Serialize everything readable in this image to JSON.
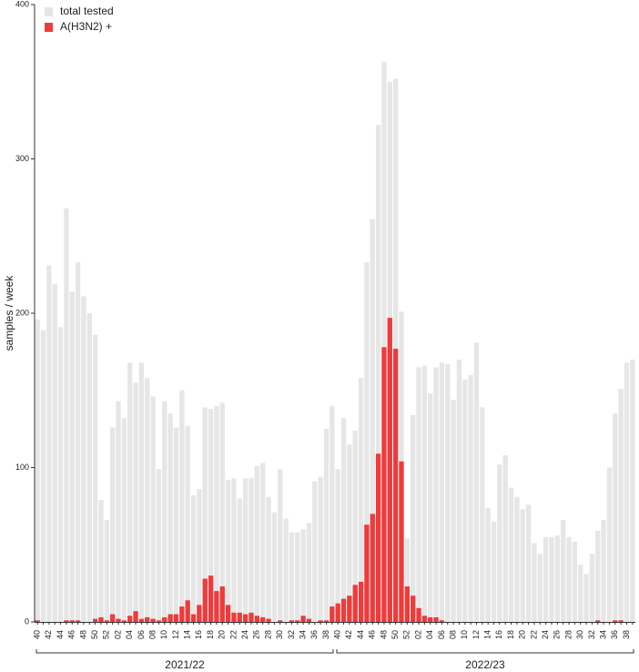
{
  "chart_data": {
    "type": "bar",
    "overlay": true,
    "y_label": "samples / week",
    "season_labels": [
      "2021/22",
      "2022/23"
    ],
    "categories": [
      "40",
      null,
      "42",
      null,
      "44",
      null,
      "46",
      null,
      "48",
      null,
      "50",
      null,
      "52",
      null,
      "02",
      null,
      "04",
      null,
      "06",
      null,
      "08",
      null,
      "10",
      null,
      "12",
      null,
      "14",
      null,
      "16",
      null,
      "18",
      null,
      "20",
      null,
      "22",
      null,
      "24",
      null,
      "26",
      null,
      "28",
      null,
      "30",
      null,
      "32",
      null,
      "34",
      null,
      "36",
      null,
      "38",
      null,
      "40",
      null,
      "42",
      null,
      "44",
      null,
      "46",
      null,
      "48",
      null,
      "50",
      null,
      "52",
      null,
      "02",
      null,
      "04",
      null,
      "06",
      null,
      "08",
      null,
      "10",
      null,
      "12",
      null,
      "14",
      null,
      "16",
      null,
      "18",
      null,
      "20",
      null,
      "22",
      null,
      "24",
      null,
      "26",
      null,
      "28",
      null,
      "30",
      null,
      "32",
      null,
      "34",
      null,
      "36",
      null,
      "38",
      null
    ],
    "series": [
      {
        "name": "total tested",
        "color": "#e6e6e6",
        "values": [
          196,
          189,
          231,
          219,
          191,
          268,
          214,
          233,
          211,
          200,
          186,
          79,
          66,
          126,
          143,
          132,
          168,
          155,
          168,
          158,
          146,
          99,
          143,
          135,
          126,
          150,
          127,
          82,
          86,
          139,
          138,
          140,
          142,
          92,
          93,
          80,
          93,
          93,
          101,
          103,
          81,
          71,
          99,
          67,
          58,
          58,
          60,
          64,
          91,
          94,
          125,
          140,
          99,
          132,
          115,
          124,
          158,
          233,
          261,
          322,
          363,
          350,
          352,
          201,
          54,
          134,
          165,
          166,
          148,
          165,
          168,
          167,
          144,
          170,
          157,
          160,
          181,
          139,
          74,
          65,
          102,
          108,
          87,
          81,
          73,
          76,
          51,
          44,
          55,
          55,
          56,
          66,
          55,
          52,
          37,
          31,
          44,
          59,
          66,
          100,
          135,
          151,
          168,
          170
        ]
      },
      {
        "name": "A(H3N2) +",
        "color": "#ee3b3b",
        "values": [
          1,
          0,
          0,
          0,
          0,
          1,
          1,
          1,
          0,
          0,
          2,
          3,
          1,
          5,
          2,
          1,
          4,
          7,
          2,
          3,
          2,
          1,
          3,
          5,
          5,
          10,
          14,
          5,
          11,
          28,
          30,
          20,
          23,
          11,
          6,
          6,
          5,
          6,
          4,
          3,
          2,
          0,
          1,
          0,
          1,
          1,
          4,
          2,
          0,
          1,
          1,
          10,
          12,
          15,
          17,
          24,
          26,
          63,
          70,
          109,
          178,
          197,
          177,
          104,
          23,
          17,
          9,
          4,
          3,
          3,
          1,
          0,
          0,
          0,
          0,
          0,
          0,
          0,
          0,
          0,
          0,
          0,
          0,
          0,
          0,
          0,
          0,
          0,
          0,
          0,
          0,
          0,
          0,
          0,
          0,
          0,
          0,
          1,
          0,
          0,
          1,
          1,
          0,
          0
        ]
      }
    ],
    "ylim": [
      0,
      400
    ],
    "yticks": [
      0,
      100,
      200,
      300,
      400
    ]
  }
}
